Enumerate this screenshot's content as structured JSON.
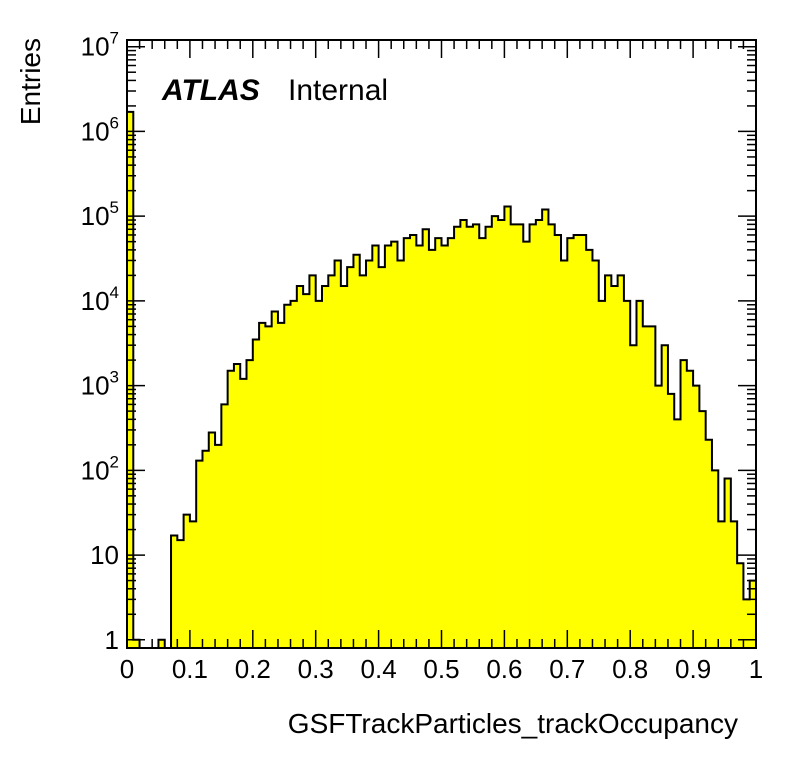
{
  "chart_data": {
    "type": "bar",
    "title": "",
    "xlabel": "GSFTrackParticles_trackOccupancy",
    "ylabel": "Entries",
    "annotation": {
      "experiment": "ATLAS",
      "status": "Internal"
    },
    "xlim": [
      0,
      1
    ],
    "ylim": [
      0.8,
      12000000
    ],
    "yscale": "log",
    "grid": false,
    "fill_color": "#ffff00",
    "edge_color": "#000000",
    "x_ticks": [
      {
        "value": 0,
        "label": "0"
      },
      {
        "value": 0.1,
        "label": "0.1"
      },
      {
        "value": 0.2,
        "label": "0.2"
      },
      {
        "value": 0.3,
        "label": "0.3"
      },
      {
        "value": 0.4,
        "label": "0.4"
      },
      {
        "value": 0.5,
        "label": "0.5"
      },
      {
        "value": 0.6,
        "label": "0.6"
      },
      {
        "value": 0.7,
        "label": "0.7"
      },
      {
        "value": 0.8,
        "label": "0.8"
      },
      {
        "value": 0.9,
        "label": "0.9"
      },
      {
        "value": 1,
        "label": "1"
      }
    ],
    "y_ticks": [
      {
        "value": 1,
        "base": "1",
        "exp": ""
      },
      {
        "value": 10,
        "base": "10",
        "exp": ""
      },
      {
        "value": 100,
        "base": "10",
        "exp": "2"
      },
      {
        "value": 1000,
        "base": "10",
        "exp": "3"
      },
      {
        "value": 10000,
        "base": "10",
        "exp": "4"
      },
      {
        "value": 100000,
        "base": "10",
        "exp": "5"
      },
      {
        "value": 1000000,
        "base": "10",
        "exp": "6"
      },
      {
        "value": 10000000,
        "base": "10",
        "exp": "7"
      }
    ],
    "bin_width": 0.01,
    "x_start": 0,
    "values": [
      1700000,
      1,
      0,
      0,
      0,
      1,
      0,
      17,
      15,
      30,
      25,
      130,
      170,
      280,
      200,
      600,
      1500,
      1800,
      1200,
      2000,
      3500,
      5500,
      5000,
      7500,
      5500,
      9000,
      10000,
      15000,
      12000,
      20000,
      10000,
      15000,
      20000,
      30000,
      15000,
      25000,
      35000,
      20000,
      30000,
      45000,
      25000,
      45000,
      50000,
      30000,
      55000,
      60000,
      45000,
      70000,
      40000,
      55000,
      45000,
      55000,
      75000,
      90000,
      75000,
      80000,
      55000,
      75000,
      100000,
      90000,
      130000,
      80000,
      80000,
      50000,
      80000,
      90000,
      120000,
      80000,
      60000,
      30000,
      55000,
      60000,
      60000,
      40000,
      30000,
      10000,
      20000,
      15000,
      20000,
      10000,
      3000,
      10000,
      5000,
      5000,
      1000,
      3000,
      800,
      400,
      2000,
      1500,
      1000,
      500,
      230,
      100,
      25,
      80,
      25,
      8,
      3,
      5
    ]
  }
}
